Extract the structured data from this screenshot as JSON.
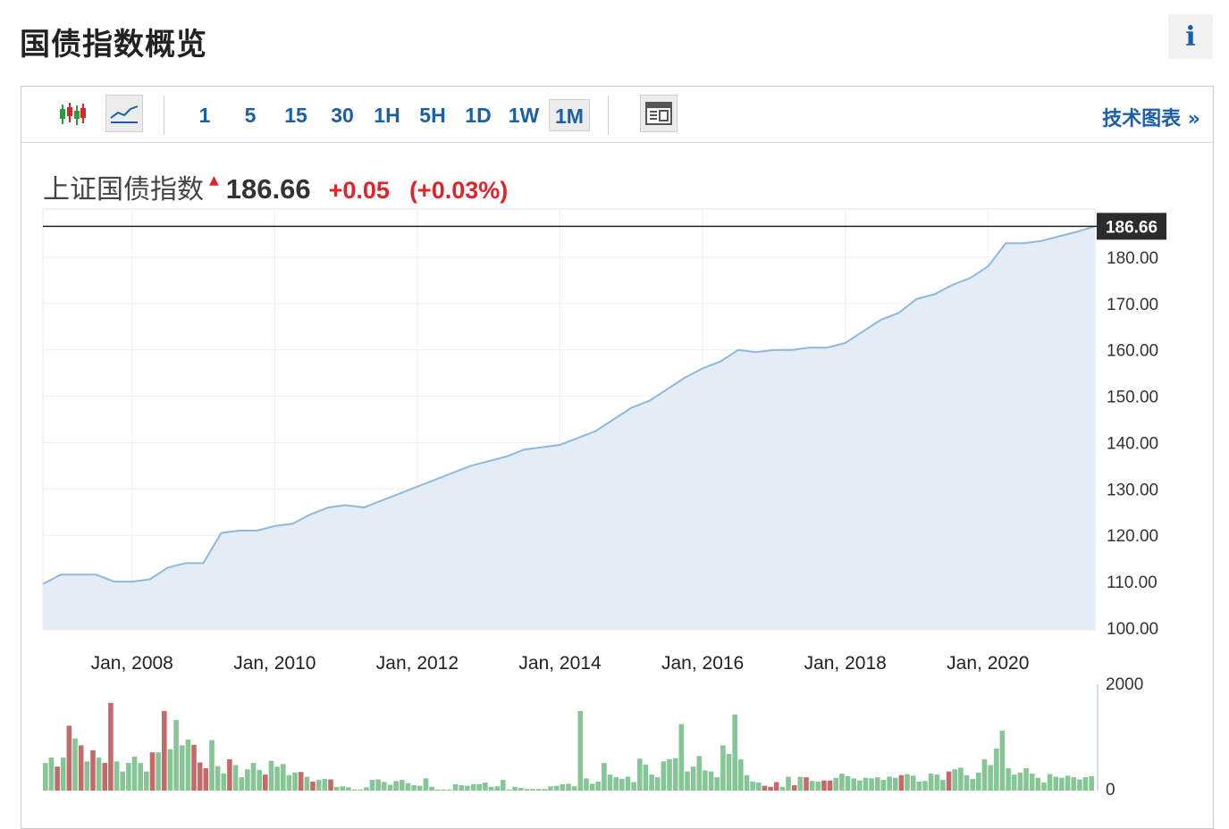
{
  "header": {
    "title": "国债指数概览",
    "info_label": "i"
  },
  "toolbar": {
    "intervals": [
      "1",
      "5",
      "15",
      "30",
      "1H",
      "5H",
      "1D",
      "1W",
      "1M"
    ],
    "active_interval": "1M",
    "tech_chart_label": "技术图表 »"
  },
  "quote": {
    "name": "上证国债指数",
    "value": "186.66",
    "change": "+0.05",
    "change_pct": "(+0.03%)"
  },
  "colors": {
    "link": "#1a5fa8",
    "up": "#e0242b",
    "area_fill": "#e4edf5",
    "line": "#8fb8dc",
    "vol_up": "#c56a6a",
    "vol_down": "#86c596"
  },
  "chart_data": {
    "type": "area",
    "x_tick_labels": [
      "Jan, 2008",
      "Jan, 2010",
      "Jan, 2012",
      "Jan, 2014",
      "Jan, 2016",
      "Jan, 2018",
      "Jan, 2020"
    ],
    "y_tick_labels": [
      "100.00",
      "110.00",
      "120.00",
      "130.00",
      "140.00",
      "150.00",
      "160.00",
      "170.00",
      "180.00"
    ],
    "ylim": [
      100,
      190
    ],
    "last_value": 186.66,
    "last_value_label": "186.66",
    "series": [
      {
        "x": [
          "2006-10",
          "2007-01",
          "2007-04",
          "2007-07",
          "2007-10",
          "2008-01",
          "2008-04",
          "2008-07",
          "2008-10",
          "2009-01",
          "2009-04",
          "2009-07",
          "2009-10",
          "2010-01",
          "2010-04",
          "2010-07",
          "2010-10",
          "2011-01",
          "2011-04",
          "2011-07",
          "2011-10",
          "2012-01",
          "2012-04",
          "2012-07",
          "2012-10",
          "2013-01",
          "2013-04",
          "2013-07",
          "2013-10",
          "2014-01",
          "2014-04",
          "2014-07",
          "2014-10",
          "2015-01",
          "2015-04",
          "2015-07",
          "2015-10",
          "2016-01",
          "2016-04",
          "2016-07",
          "2016-10",
          "2017-01",
          "2017-04",
          "2017-07",
          "2017-10",
          "2018-01",
          "2018-04",
          "2018-07",
          "2018-10",
          "2019-01",
          "2019-04",
          "2019-07",
          "2019-10",
          "2020-01",
          "2020-04",
          "2020-07",
          "2020-10",
          "2021-01",
          "2021-04",
          "2021-07"
        ],
        "values": [
          109.5,
          111.5,
          111.5,
          111.5,
          110,
          110,
          110.5,
          113,
          114,
          114,
          120.5,
          121,
          121,
          122,
          122.5,
          124.5,
          126,
          126.5,
          126,
          127.5,
          129,
          130.5,
          132,
          133.5,
          135,
          136,
          137,
          138.5,
          139,
          139.5,
          141,
          142.5,
          145,
          147.5,
          149,
          151.5,
          154,
          156,
          157.5,
          160,
          159.5,
          160,
          160,
          160.5,
          160.5,
          161.5,
          164,
          166.5,
          168,
          171,
          172,
          174,
          175.5,
          178,
          183,
          183,
          183.5,
          184.5,
          185.5,
          186.66
        ]
      }
    ],
    "volume": {
      "ylim": [
        0,
        2000
      ],
      "tick_labels": [
        "2000",
        "0"
      ],
      "values": [
        520,
        620,
        450,
        620,
        1220,
        980,
        850,
        550,
        760,
        620,
        520,
        1650,
        550,
        360,
        520,
        640,
        520,
        360,
        720,
        720,
        1500,
        780,
        1330,
        850,
        960,
        860,
        530,
        420,
        950,
        460,
        320,
        590,
        480,
        250,
        400,
        520,
        390,
        300,
        560,
        450,
        500,
        290,
        340,
        350,
        260,
        170,
        200,
        220,
        210,
        70,
        80,
        60,
        20,
        20,
        60,
        200,
        210,
        160,
        110,
        180,
        200,
        140,
        100,
        90,
        230,
        70,
        20,
        20,
        20,
        120,
        100,
        90,
        120,
        120,
        150,
        70,
        80,
        200,
        20,
        70,
        50,
        30,
        30,
        30,
        30,
        80,
        90,
        120,
        130,
        80,
        1500,
        230,
        130,
        170,
        520,
        300,
        250,
        220,
        260,
        160,
        600,
        490,
        300,
        250,
        550,
        590,
        610,
        1250,
        360,
        450,
        650,
        380,
        360,
        250,
        850,
        690,
        1430,
        590,
        290,
        170,
        150,
        90,
        70,
        160,
        70,
        260,
        100,
        260,
        250,
        180,
        170,
        190,
        190,
        240,
        320,
        270,
        230,
        190,
        240,
        230,
        250,
        200,
        260,
        240,
        290,
        310,
        280,
        170,
        180,
        320,
        300,
        200,
        360,
        400,
        430,
        290,
        220,
        340,
        590,
        480,
        790,
        1130,
        420,
        300,
        340,
        420,
        320,
        240,
        150,
        310,
        260,
        240,
        280,
        250,
        210,
        250,
        270
      ],
      "up": [
        false,
        false,
        true,
        false,
        true,
        false,
        true,
        false,
        true,
        false,
        true,
        true,
        false,
        false,
        false,
        false,
        false,
        false,
        true,
        false,
        true,
        false,
        false,
        false,
        false,
        true,
        true,
        true,
        false,
        false,
        false,
        true,
        false,
        false,
        false,
        false,
        false,
        true,
        false,
        false,
        false,
        false,
        false,
        true,
        false,
        true,
        false,
        false,
        true,
        false,
        false,
        false,
        false,
        false,
        false,
        false,
        false,
        false,
        false,
        false,
        false,
        false,
        false,
        false,
        false,
        false,
        false,
        false,
        false,
        false,
        false,
        false,
        false,
        false,
        false,
        false,
        false,
        false,
        false,
        false,
        false,
        false,
        false,
        false,
        false,
        false,
        false,
        false,
        false,
        false,
        false,
        false,
        false,
        false,
        false,
        false,
        false,
        false,
        false,
        false,
        false,
        false,
        false,
        false,
        false,
        false,
        false,
        false,
        false,
        false,
        false,
        false,
        false,
        false,
        false,
        false,
        false,
        false,
        false,
        false,
        false,
        true,
        true,
        true,
        false,
        false,
        true,
        false,
        true,
        false,
        false,
        true,
        true,
        false,
        false,
        false,
        false,
        false,
        false,
        false,
        false,
        false,
        false,
        false,
        true,
        false,
        false,
        false,
        false,
        false,
        false,
        false,
        true,
        false,
        false,
        false,
        false,
        false,
        false,
        false,
        false,
        false,
        false,
        false,
        false,
        false,
        false,
        false,
        false,
        false,
        false,
        false,
        false,
        false,
        false,
        false,
        false,
        false,
        false,
        false
      ]
    }
  }
}
